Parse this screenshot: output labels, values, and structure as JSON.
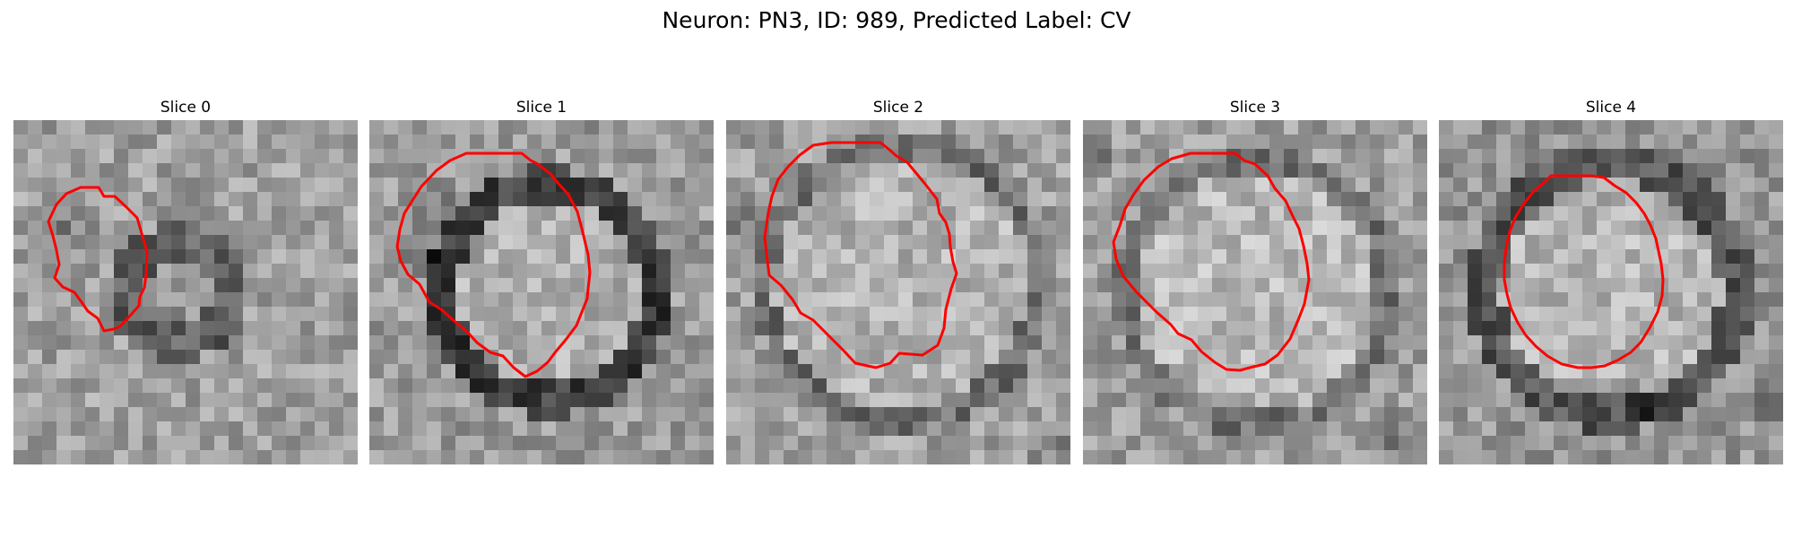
{
  "figure": {
    "title": "Neuron: PN3, ID: 989, Predicted Label: CV"
  },
  "colors": {
    "contour": "#ff0000",
    "background": "#ffffff"
  },
  "slices": [
    {
      "title": "Slice 0"
    },
    {
      "title": "Slice 1"
    },
    {
      "title": "Slice 2"
    },
    {
      "title": "Slice 3"
    },
    {
      "title": "Slice 4"
    }
  ]
}
